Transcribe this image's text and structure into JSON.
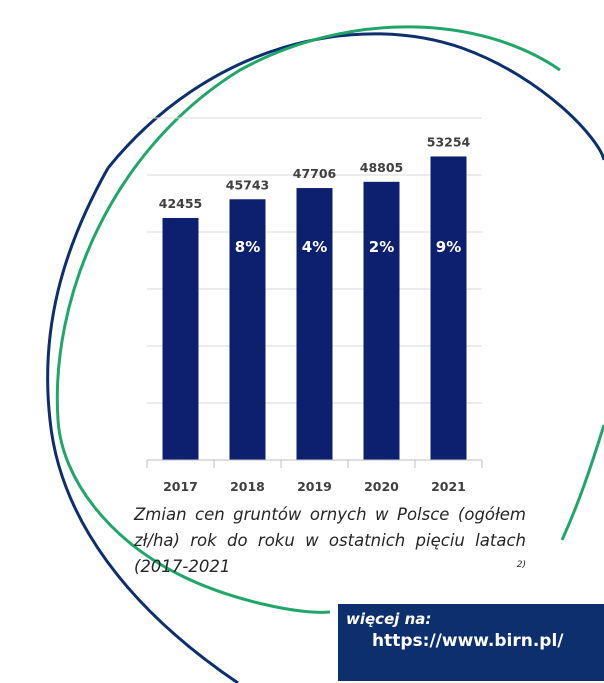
{
  "chart_data": {
    "type": "bar",
    "categories": [
      "2017",
      "2018",
      "2019",
      "2020",
      "2021"
    ],
    "values": [
      42455,
      45743,
      47706,
      48805,
      53254
    ],
    "change_labels": [
      "",
      "8%",
      "4%",
      "2%",
      "9%"
    ],
    "ylim": [
      0,
      60000
    ],
    "grid": true,
    "legend": "none",
    "bar_color": "#0d2070"
  },
  "caption": {
    "text": "Zmian cen gruntów ornych w Polsce (ogółem zł/ha) rok do roku w ostatnich pięciu latach (2017-2021",
    "footnote": "2)"
  },
  "more": {
    "label": "więcej na:",
    "url": "https://www.birn.pl/"
  },
  "colors": {
    "navy": "#0d2f6e",
    "green": "#21a66a",
    "bar": "#0d2070"
  }
}
